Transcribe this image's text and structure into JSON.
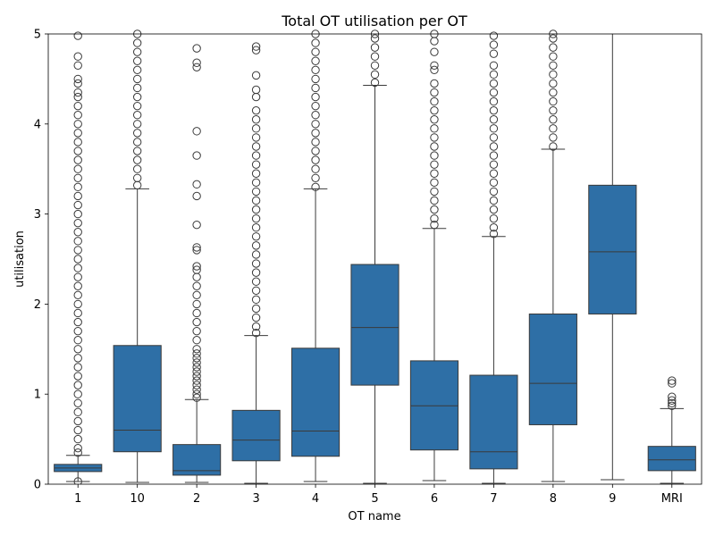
{
  "chart_data": {
    "type": "box",
    "title": "Total OT utilisation per OT",
    "xlabel": "OT name",
    "ylabel": "utilisation",
    "ylim": [
      0,
      5
    ],
    "yticks": [
      "0",
      "1",
      "2",
      "3",
      "4",
      "5"
    ],
    "grid": false,
    "box_color": "#2e6fa6",
    "line_color": "#3a3a3a",
    "categories": [
      "1",
      "10",
      "2",
      "3",
      "4",
      "5",
      "6",
      "7",
      "8",
      "9",
      "MRI"
    ],
    "boxes": [
      {
        "category": "1",
        "whisker_low": 0.03,
        "q1": 0.14,
        "median": 0.18,
        "q3": 0.22,
        "whisker_high": 0.32,
        "outliers_low": [
          0.03
        ],
        "outliers_high": [
          0.35,
          0.4,
          0.5,
          0.6,
          0.7,
          0.8,
          0.9,
          1.0,
          1.1,
          1.2,
          1.3,
          1.4,
          1.5,
          1.6,
          1.7,
          1.8,
          1.9,
          2.0,
          2.1,
          2.2,
          2.3,
          2.4,
          2.5,
          2.6,
          2.7,
          2.8,
          2.9,
          3.0,
          3.1,
          3.2,
          3.3,
          3.4,
          3.5,
          3.6,
          3.7,
          3.8,
          3.9,
          4.0,
          4.1,
          4.2,
          4.3,
          4.35,
          4.45,
          4.5,
          4.65,
          4.75,
          4.98
        ]
      },
      {
        "category": "10",
        "whisker_low": 0.02,
        "q1": 0.36,
        "median": 0.6,
        "q3": 1.54,
        "whisker_high": 3.28,
        "outliers_low": [],
        "outliers_high": [
          3.32,
          3.4,
          3.5,
          3.6,
          3.7,
          3.8,
          3.9,
          4.0,
          4.1,
          4.2,
          4.3,
          4.4,
          4.5,
          4.6,
          4.7,
          4.8,
          4.9,
          5.0
        ]
      },
      {
        "category": "2",
        "whisker_low": 0.02,
        "q1": 0.1,
        "median": 0.15,
        "q3": 0.44,
        "whisker_high": 0.94,
        "outliers_low": [],
        "outliers_high": [
          0.96,
          1.0,
          1.05,
          1.1,
          1.15,
          1.2,
          1.25,
          1.3,
          1.35,
          1.4,
          1.45,
          1.5,
          1.6,
          1.7,
          1.8,
          1.9,
          2.0,
          2.1,
          2.2,
          2.3,
          2.38,
          2.42,
          2.6,
          2.63,
          2.88,
          3.2,
          3.33,
          3.65,
          3.92,
          4.63,
          4.68,
          4.84
        ]
      },
      {
        "category": "3",
        "whisker_low": 0.01,
        "q1": 0.26,
        "median": 0.49,
        "q3": 0.82,
        "whisker_high": 1.65,
        "outliers_low": [],
        "outliers_high": [
          1.68,
          1.75,
          1.85,
          1.95,
          2.05,
          2.15,
          2.25,
          2.35,
          2.45,
          2.55,
          2.65,
          2.75,
          2.85,
          2.95,
          3.05,
          3.15,
          3.25,
          3.35,
          3.45,
          3.55,
          3.65,
          3.75,
          3.85,
          3.95,
          4.05,
          4.15,
          4.3,
          4.38,
          4.54,
          4.82,
          4.86
        ]
      },
      {
        "category": "4",
        "whisker_low": 0.03,
        "q1": 0.31,
        "median": 0.59,
        "q3": 1.51,
        "whisker_high": 3.28,
        "outliers_low": [],
        "outliers_high": [
          3.3,
          3.4,
          3.5,
          3.6,
          3.7,
          3.8,
          3.9,
          4.0,
          4.1,
          4.2,
          4.3,
          4.4,
          4.5,
          4.6,
          4.7,
          4.8,
          4.9,
          5.0
        ]
      },
      {
        "category": "5",
        "whisker_low": 0.01,
        "q1": 1.1,
        "median": 1.74,
        "q3": 2.44,
        "whisker_high": 4.43,
        "outliers_low": [],
        "outliers_high": [
          4.46,
          4.55,
          4.65,
          4.75,
          4.85,
          4.95,
          5.0
        ]
      },
      {
        "category": "6",
        "whisker_low": 0.04,
        "q1": 0.38,
        "median": 0.87,
        "q3": 1.37,
        "whisker_high": 2.84,
        "outliers_low": [],
        "outliers_high": [
          2.88,
          2.95,
          3.05,
          3.15,
          3.25,
          3.35,
          3.45,
          3.55,
          3.65,
          3.75,
          3.85,
          3.95,
          4.05,
          4.15,
          4.25,
          4.35,
          4.45,
          4.6,
          4.65,
          4.8,
          4.92,
          5.0
        ]
      },
      {
        "category": "7",
        "whisker_low": 0.01,
        "q1": 0.17,
        "median": 0.36,
        "q3": 1.21,
        "whisker_high": 2.75,
        "outliers_low": [],
        "outliers_high": [
          2.78,
          2.85,
          2.95,
          3.05,
          3.15,
          3.25,
          3.35,
          3.45,
          3.55,
          3.65,
          3.75,
          3.85,
          3.95,
          4.05,
          4.15,
          4.25,
          4.35,
          4.45,
          4.55,
          4.65,
          4.78,
          4.88,
          4.98
        ]
      },
      {
        "category": "8",
        "whisker_low": 0.03,
        "q1": 0.66,
        "median": 1.12,
        "q3": 1.89,
        "whisker_high": 3.72,
        "outliers_low": [],
        "outliers_high": [
          3.75,
          3.85,
          3.95,
          4.05,
          4.15,
          4.25,
          4.35,
          4.45,
          4.55,
          4.65,
          4.75,
          4.85,
          4.95,
          5.0
        ]
      },
      {
        "category": "9",
        "whisker_low": 0.05,
        "q1": 1.89,
        "median": 2.58,
        "q3": 3.32,
        "whisker_high": 5.0,
        "outliers_low": [],
        "outliers_high": []
      },
      {
        "category": "MRI",
        "whisker_low": 0.01,
        "q1": 0.15,
        "median": 0.27,
        "q3": 0.42,
        "whisker_high": 0.84,
        "outliers_low": [],
        "outliers_high": [
          0.87,
          0.9,
          0.93,
          0.97,
          1.12,
          1.15
        ]
      }
    ]
  }
}
